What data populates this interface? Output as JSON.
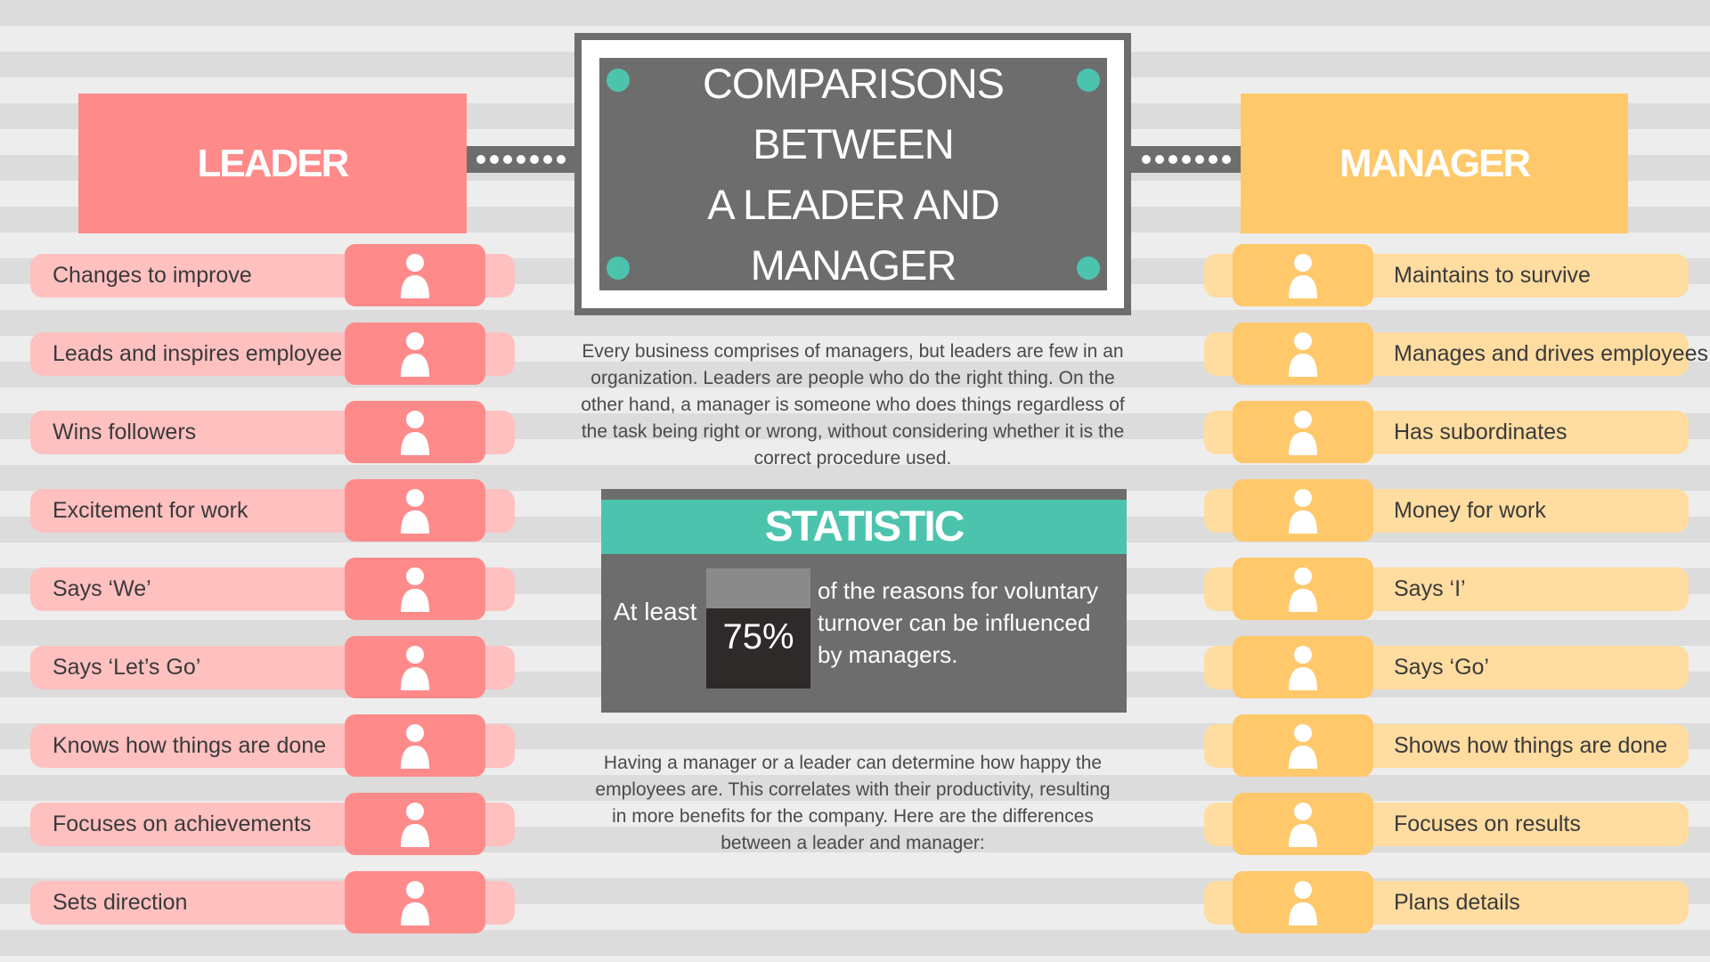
{
  "title": {
    "lines": [
      "COMPARISONS BETWEEN",
      "A LEADER AND MANAGER"
    ]
  },
  "leader": {
    "heading": "LEADER",
    "items": [
      "Changes to improve",
      "Leads and inspires employee",
      "Wins followers",
      "Excitement for work",
      "Says ‘We’",
      "Says ‘Let’s Go’",
      "Knows how things are done",
      "Focuses on achievements",
      "Sets direction"
    ]
  },
  "manager": {
    "heading": "MANAGER",
    "items": [
      "Maintains to survive",
      "Manages and drives employees",
      "Has subordinates",
      "Money for work",
      "Says ‘I’",
      "Says ‘Go’",
      "Shows how things are done",
      "Focuses on results",
      "Plans details"
    ]
  },
  "intro": "Every business comprises of managers, but leaders are few in an organization. Leaders are people who do the right thing. On the other hand, a manager is someone who does things regardless of the task being right or wrong, without considering whether it is the correct procedure used.",
  "statistic": {
    "heading": "STATISTIC",
    "prefix": "At least",
    "figure": "75%",
    "text": "of the reasons for voluntary turnover can be influenced by managers."
  },
  "outro": "Having a manager or a leader can determine how happy the employees are. This correlates with their productivity, resulting in more benefits for the company. Here are the differences between a leader and manager:"
}
